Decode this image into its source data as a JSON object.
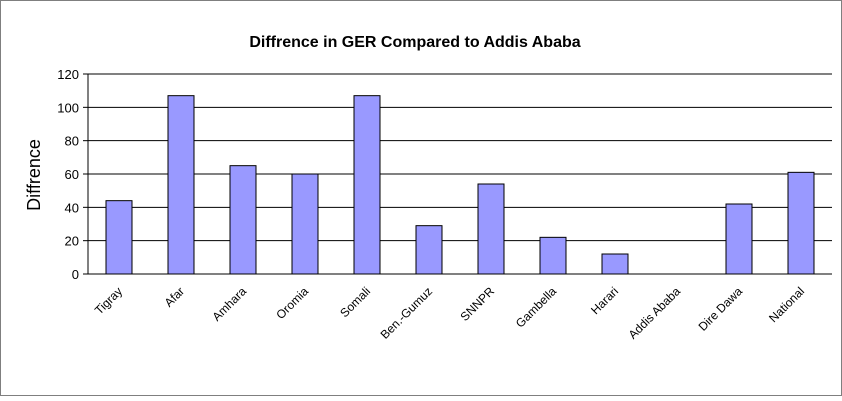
{
  "chart_data": {
    "type": "bar",
    "title": "Diffrence in GER Compared to Addis Ababa",
    "xlabel": "",
    "ylabel": "Diffrence",
    "ylim": [
      0,
      120
    ],
    "yticks": [
      0,
      20,
      40,
      60,
      80,
      100,
      120
    ],
    "grid": true,
    "legend": "none",
    "categories": [
      "Tigray",
      "Afar",
      "Amhara",
      "Oromia",
      "Somali",
      "Ben.-Gumuz",
      "SNNPR",
      "Gambella",
      "Harari",
      "Addis Ababa",
      "Dire Dawa",
      "National"
    ],
    "values": [
      44,
      107,
      65,
      60,
      107,
      29,
      54,
      22,
      12,
      0,
      42,
      61
    ],
    "bar_color": "#9999ff",
    "bar_stroke": "#000000"
  }
}
